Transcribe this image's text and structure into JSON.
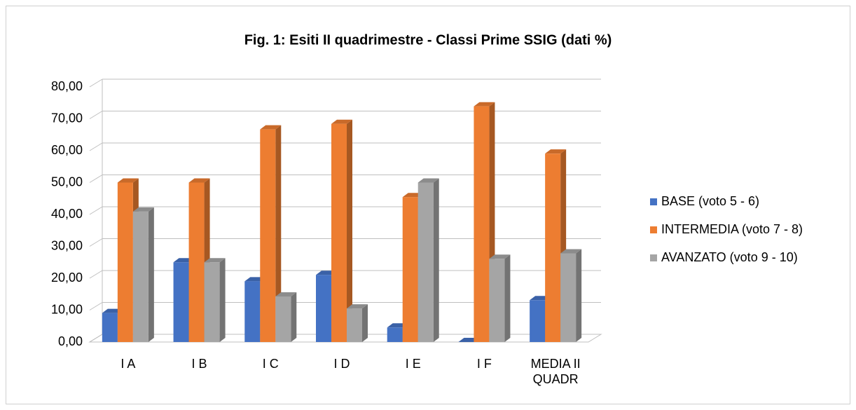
{
  "chart_data": {
    "type": "bar3d",
    "title": "Fig. 1: Esiti II quadrimestre  - Classi Prime SSIG (dati %)",
    "categories": [
      "I A",
      "I B",
      "I C",
      "I D",
      "I E",
      "I F",
      "MEDIA II QUADR"
    ],
    "series": [
      {
        "name": "BASE (voto 5 - 6)",
        "color": "#4472c4",
        "values": [
          9.09,
          25,
          19.05,
          21.05,
          4.55,
          0,
          13.12
        ]
      },
      {
        "name": "INTERMEDIA (voto 7 - 8)",
        "color": "#ed7d31",
        "values": [
          50,
          50,
          66.67,
          68.42,
          45.45,
          73.91,
          59.08
        ]
      },
      {
        "name": "AVANZATO (voto 9 - 10)",
        "color": "#a5a5a5",
        "values": [
          40.91,
          25,
          14.29,
          10.53,
          50,
          26.09,
          27.8
        ]
      }
    ],
    "ylim": [
      0,
      80
    ],
    "yticks": [
      {
        "value": 0,
        "label": "0,00"
      },
      {
        "value": 10,
        "label": "10,00"
      },
      {
        "value": 20,
        "label": "20,00"
      },
      {
        "value": 30,
        "label": "30,00"
      },
      {
        "value": 40,
        "label": "40,00"
      },
      {
        "value": 50,
        "label": "50,00"
      },
      {
        "value": 60,
        "label": "60,00"
      },
      {
        "value": 70,
        "label": "70,00"
      },
      {
        "value": 80,
        "label": "80,00"
      }
    ],
    "grid": true,
    "legend": "right"
  }
}
